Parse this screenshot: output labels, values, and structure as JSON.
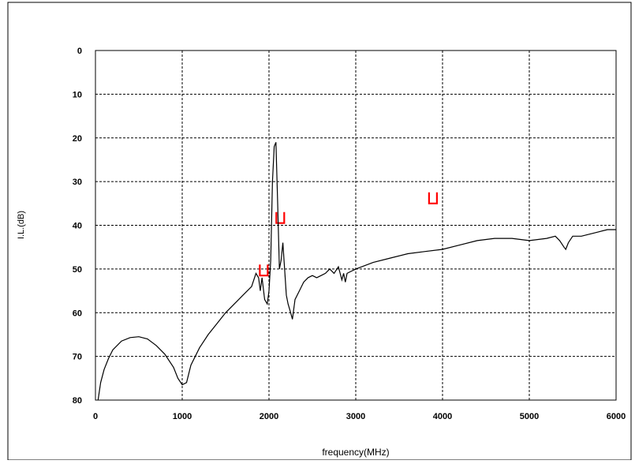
{
  "chart_data": {
    "type": "line",
    "title": "",
    "xlabel": "frequency(MHz)",
    "ylabel": "I.L.(dB)",
    "xlim": [
      0,
      6000
    ],
    "ylim": [
      0,
      80
    ],
    "y_inverted": true,
    "grid": true,
    "x_ticks": [
      0,
      1000,
      2000,
      3000,
      4000,
      5000,
      6000
    ],
    "y_ticks": [
      0,
      10,
      20,
      30,
      40,
      50,
      60,
      70,
      80
    ],
    "x_tick_labels": [
      "0",
      "1000",
      "2000",
      "3000",
      "4000",
      "5000",
      "6000"
    ],
    "y_tick_labels": [
      "0",
      "10",
      "20",
      "30",
      "40",
      "50",
      "60",
      "70",
      "80"
    ],
    "line_color": "#000000",
    "marker_color": "#ff0000",
    "series": [
      {
        "x": [
          30,
          60,
          100,
          150,
          200,
          300,
          400,
          500,
          600,
          700,
          800,
          900,
          950,
          1000,
          1050,
          1100,
          1200,
          1300,
          1400,
          1500,
          1600,
          1700,
          1800,
          1850,
          1880,
          1900,
          1920,
          1950,
          1980,
          2000,
          2020,
          2040,
          2060,
          2080,
          2100,
          2120,
          2140,
          2160,
          2180,
          2200,
          2220,
          2250,
          2270,
          2300,
          2350,
          2400,
          2450,
          2500,
          2550,
          2600,
          2650,
          2700,
          2750,
          2800,
          2820,
          2840,
          2860,
          2880,
          2900,
          2950,
          3000,
          3200,
          3400,
          3600,
          3800,
          4000,
          4200,
          4400,
          4600,
          4800,
          5000,
          5200,
          5300,
          5350,
          5400,
          5420,
          5450,
          5500,
          5600,
          5700,
          5800,
          5900,
          6000
        ],
        "y": [
          80,
          76,
          73,
          70.5,
          68.5,
          66.5,
          65.7,
          65.5,
          66,
          67.5,
          69.5,
          72.5,
          75,
          76.5,
          76,
          72,
          68,
          65,
          62.5,
          60,
          58,
          56,
          54,
          51,
          52,
          55,
          52,
          57,
          58,
          55,
          48,
          30,
          22,
          21,
          35,
          50,
          48,
          44,
          50,
          56,
          58,
          60,
          61.5,
          57,
          55,
          53,
          52,
          51.5,
          52,
          51.5,
          51,
          50,
          51,
          49.5,
          51,
          52.5,
          51,
          53,
          51,
          50.5,
          50,
          48.5,
          47.5,
          46.5,
          46,
          45.5,
          44.5,
          43.5,
          43,
          43,
          43.5,
          43,
          42.5,
          43.5,
          45,
          45.5,
          44,
          42.5,
          42.5,
          42,
          41.5,
          41,
          41
        ]
      }
    ],
    "spec_markers": [
      {
        "x": 1940,
        "y": 51.5
      },
      {
        "x": 2130,
        "y": 39.5
      },
      {
        "x": 3890,
        "y": 35
      }
    ]
  }
}
